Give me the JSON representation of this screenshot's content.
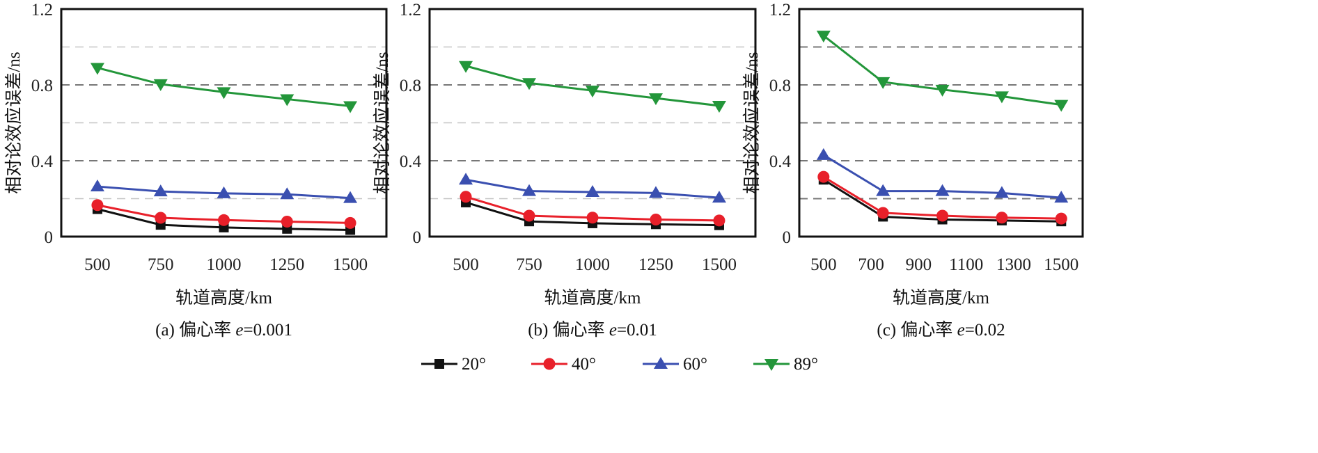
{
  "chart_data": [
    {
      "type": "line",
      "caption": "(a) 偏心率 e=0.001",
      "caption_prefix": "(a) 偏心率 ",
      "caption_var": "e",
      "caption_value": "=0.001",
      "xlabel": "轨道高度/km",
      "ylabel": "相对论效应误差/ns",
      "xlim": [
        357,
        1643
      ],
      "ylim": [
        0,
        1.2
      ],
      "xticks": [
        500,
        750,
        1000,
        1250,
        1500
      ],
      "yticks": [
        0,
        0.4,
        0.8,
        1.2
      ],
      "grid_y": [
        0.2,
        0.4,
        0.6,
        0.8,
        1.0
      ],
      "x": [
        500,
        750,
        1000,
        1250,
        1500
      ],
      "series": [
        {
          "name": "20°",
          "values": [
            0.145,
            0.062,
            0.048,
            0.041,
            0.035
          ]
        },
        {
          "name": "40°",
          "values": [
            0.166,
            0.099,
            0.087,
            0.079,
            0.072
          ]
        },
        {
          "name": "60°",
          "values": [
            0.264,
            0.238,
            0.228,
            0.223,
            0.203
          ]
        },
        {
          "name": "89°",
          "values": [
            0.89,
            0.804,
            0.762,
            0.725,
            0.688
          ]
        }
      ]
    },
    {
      "type": "line",
      "caption_prefix": "(b) 偏心率 ",
      "caption_var": "e",
      "caption_value": "=0.01",
      "xlabel": "轨道高度/km",
      "ylabel": "相对论效应误差/ns",
      "xlim": [
        357,
        1643
      ],
      "ylim": [
        0,
        1.2
      ],
      "xticks": [
        500,
        750,
        1000,
        1250,
        1500
      ],
      "yticks": [
        0,
        0.4,
        0.8,
        1.2
      ],
      "grid_y": [
        0.2,
        0.4,
        0.6,
        0.8,
        1.0
      ],
      "x": [
        500,
        750,
        1000,
        1250,
        1500
      ],
      "series": [
        {
          "name": "20°",
          "values": [
            0.18,
            0.08,
            0.07,
            0.065,
            0.06
          ]
        },
        {
          "name": "40°",
          "values": [
            0.21,
            0.11,
            0.1,
            0.09,
            0.085
          ]
        },
        {
          "name": "60°",
          "values": [
            0.3,
            0.24,
            0.235,
            0.23,
            0.205
          ]
        },
        {
          "name": "89°",
          "values": [
            0.9,
            0.81,
            0.77,
            0.73,
            0.69
          ]
        }
      ]
    },
    {
      "type": "line",
      "caption_prefix": "(c) 偏心率 ",
      "caption_var": "e",
      "caption_value": "=0.02",
      "xlabel": "轨道高度/km",
      "ylabel": "相对论效应误差/ns",
      "xlim": [
        398,
        1590
      ],
      "ylim": [
        0,
        1.2
      ],
      "xticks": [
        500,
        700,
        900,
        1100,
        1300,
        1500
      ],
      "yticks": [
        0,
        0.4,
        0.8,
        1.2
      ],
      "grid_y": [
        0.2,
        0.4,
        0.6,
        0.8,
        1.0
      ],
      "x": [
        500,
        750,
        1000,
        1250,
        1500
      ],
      "series": [
        {
          "name": "20°",
          "values": [
            0.3,
            0.105,
            0.09,
            0.085,
            0.08
          ]
        },
        {
          "name": "40°",
          "values": [
            0.315,
            0.125,
            0.11,
            0.1,
            0.095
          ]
        },
        {
          "name": "60°",
          "values": [
            0.43,
            0.24,
            0.24,
            0.23,
            0.205
          ]
        },
        {
          "name": "89°",
          "values": [
            1.06,
            0.815,
            0.775,
            0.74,
            0.695
          ]
        }
      ]
    }
  ],
  "legend": {
    "placement": "bottom-center",
    "items": [
      {
        "label": "20°",
        "color": "#111111",
        "marker": "square"
      },
      {
        "label": "40°",
        "color": "#e8202a",
        "marker": "circle"
      },
      {
        "label": "60°",
        "color": "#3a4fb0",
        "marker": "triangle-up"
      },
      {
        "label": "89°",
        "color": "#23963a",
        "marker": "triangle-down"
      }
    ]
  }
}
